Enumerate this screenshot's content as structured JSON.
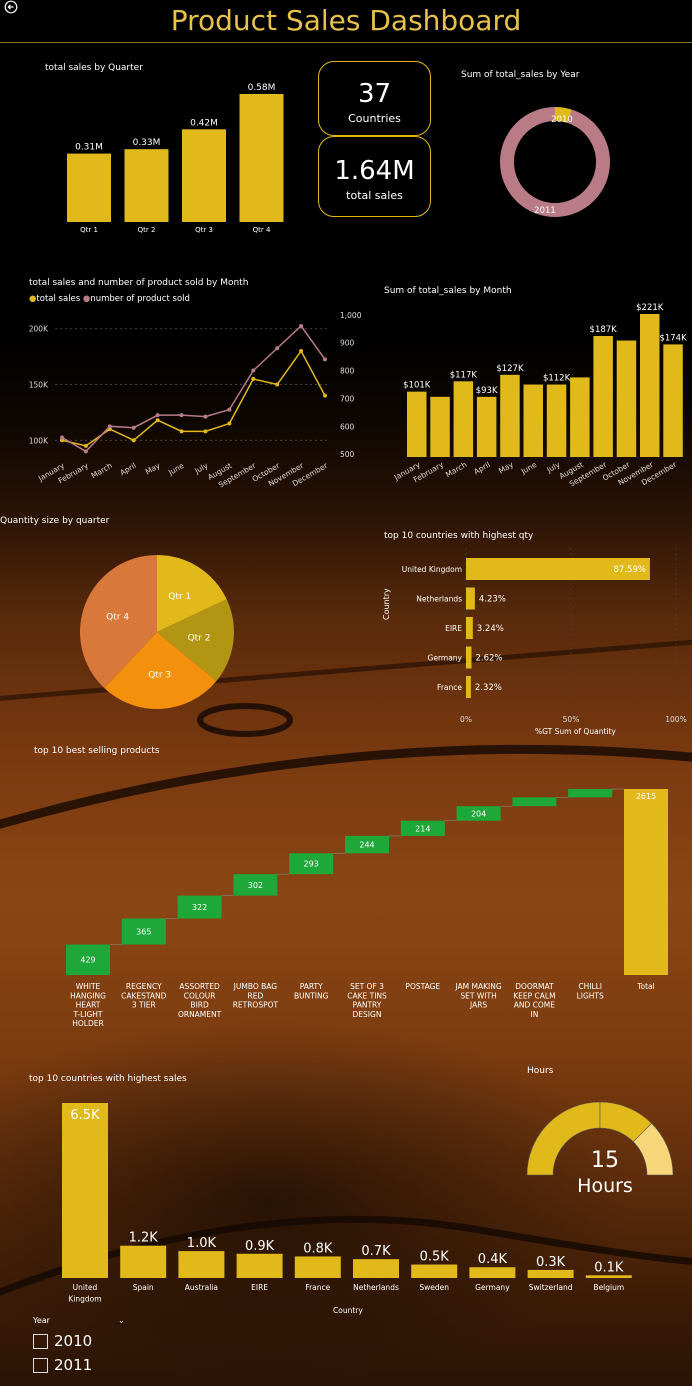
{
  "header": {
    "title": "Product Sales Dashboard"
  },
  "colors": {
    "gold": "#e1b91b",
    "mauve": "#b97b86",
    "green": "#1fa83a",
    "orange": "#f3900c",
    "rust": "#d8783a",
    "olive": "#b39514"
  },
  "cards": {
    "countries": {
      "value": "37",
      "label": "Countries"
    },
    "sales": {
      "value": "1.64M",
      "label": "total sales"
    }
  },
  "quarter_chart": {
    "title": "total sales by Quarter"
  },
  "year_chart": {
    "title": "Sum of total_sales by Year"
  },
  "month_line_chart": {
    "title": "total sales and number of product sold by Month",
    "legend": [
      "total sales",
      "number of product sold"
    ]
  },
  "month_bar_chart": {
    "title": "Sum of total_sales by Month"
  },
  "pie_chart": {
    "title": "Quantity size by quarter"
  },
  "qty_chart": {
    "title": "top 10 countries with highest qty",
    "ylabel": "Country",
    "xlabel": "%GT Sum of Quantity"
  },
  "products_chart": {
    "title": "top 10 best selling products"
  },
  "country_sales_chart": {
    "title": "top 10 countries with highest sales",
    "xlabel": "Country"
  },
  "gauge": {
    "title": "Hours",
    "value": "15",
    "unit": "Hours"
  },
  "slicer": {
    "title": "Year",
    "options": [
      "2010",
      "2011"
    ]
  },
  "chart_data": [
    {
      "id": "quarter",
      "type": "bar",
      "categories": [
        "Qtr 1",
        "Qtr 2",
        "Qtr 3",
        "Qtr 4"
      ],
      "values": [
        0.31,
        0.33,
        0.42,
        0.58
      ],
      "labels": [
        "0.31M",
        "0.33M",
        "0.42M",
        "0.58M"
      ],
      "title": "total sales by Quarter",
      "ylim": [
        0,
        0.58
      ]
    },
    {
      "id": "year",
      "type": "pie",
      "categories": [
        "2010",
        "2011"
      ],
      "values": [
        0.05,
        0.95
      ],
      "title": "Sum of total_sales by Year",
      "donut": true
    },
    {
      "id": "month_line",
      "type": "line",
      "categories": [
        "January",
        "February",
        "March",
        "April",
        "May",
        "June",
        "July",
        "August",
        "September",
        "October",
        "November",
        "December"
      ],
      "series": [
        {
          "name": "total sales",
          "axis": "left",
          "values": [
            100,
            95,
            110,
            100,
            118,
            108,
            108,
            115,
            155,
            150,
            180,
            140
          ]
        },
        {
          "name": "number of product sold",
          "axis": "right",
          "values": [
            560,
            510,
            600,
            595,
            640,
            640,
            635,
            660,
            800,
            880,
            960,
            840
          ]
        }
      ],
      "left_ticks": [
        "100K",
        "150K",
        "200K"
      ],
      "left_range": [
        85,
        215
      ],
      "right_ticks": [
        "500",
        "600",
        "700",
        "800",
        "900",
        "1,000"
      ],
      "right_range": [
        490,
        1010
      ]
    },
    {
      "id": "month_bar",
      "type": "bar",
      "categories": [
        "January",
        "February",
        "March",
        "April",
        "May",
        "June",
        "July",
        "August",
        "September",
        "October",
        "November",
        "December"
      ],
      "values": [
        101,
        93,
        117,
        93,
        127,
        112,
        112,
        123,
        187,
        180,
        221,
        174
      ],
      "labels": [
        "$101K",
        "",
        "$117K",
        "$93K",
        "$127K",
        "",
        "$112K",
        "",
        "$187K",
        "",
        "$221K",
        "$174K"
      ],
      "title": "Sum of total_sales by Month",
      "ylim": [
        0,
        221
      ]
    },
    {
      "id": "pie_quarter",
      "type": "pie",
      "categories": [
        "Qtr 1",
        "Qtr 2",
        "Qtr 3",
        "Qtr 4"
      ],
      "values": [
        18,
        18,
        26,
        38
      ],
      "title": "Quantity size by quarter"
    },
    {
      "id": "country_qty",
      "type": "bar",
      "orientation": "horizontal",
      "categories": [
        "United Kingdom",
        "Netherlands",
        "EIRE",
        "Germany",
        "France"
      ],
      "values": [
        87.59,
        4.23,
        3.24,
        2.62,
        2.32
      ],
      "labels": [
        "87.59%",
        "4.23%",
        "3.24%",
        "2.62%",
        "2.32%"
      ],
      "xticks": [
        "0%",
        "50%",
        "100%"
      ],
      "xlim": [
        0,
        100
      ],
      "title": "top 10 countries with highest qty",
      "xlabel": "%GT Sum of Quantity",
      "ylabel": "Country"
    },
    {
      "id": "products",
      "type": "waterfall",
      "categories": [
        "WHITE HANGING HEART T-LIGHT HOLDER",
        "REGENCY CAKESTAND 3 TIER",
        "ASSORTED COLOUR BIRD ORNAMENT",
        "JUMBO BAG RED RETROSPOT",
        "PARTY BUNTING",
        "SET OF 3 CAKE TINS PANTRY DESIGN",
        "POSTAGE",
        "JAM MAKING SET WITH JARS",
        "DOORMAT KEEP CALM AND COME IN",
        "CHILLI LIGHTS",
        "Total"
      ],
      "values": [
        429,
        365,
        322,
        302,
        293,
        244,
        214,
        204,
        125,
        117,
        2615
      ],
      "labels": [
        "429",
        "365",
        "322",
        "302",
        "293",
        "244",
        "214",
        "204",
        "",
        "",
        "2615"
      ],
      "title": "top 10 best selling products"
    },
    {
      "id": "country_sales",
      "type": "bar",
      "categories": [
        "United Kingdom",
        "Spain",
        "Australia",
        "EIRE",
        "France",
        "Netherlands",
        "Sweden",
        "Germany",
        "Switzerland",
        "Belgium"
      ],
      "values": [
        6.5,
        1.2,
        1.0,
        0.9,
        0.8,
        0.7,
        0.5,
        0.4,
        0.3,
        0.1
      ],
      "labels": [
        "6.5K",
        "1.2K",
        "1.0K",
        "0.9K",
        "0.8K",
        "0.7K",
        "0.5K",
        "0.4K",
        "0.3K",
        "0.1K"
      ],
      "title": "top 10 countries with highest sales",
      "xlabel": "Country",
      "ylim": [
        0,
        6.5
      ]
    },
    {
      "id": "hours_gauge",
      "type": "gauge",
      "value": 15,
      "segments": [
        0.5,
        0.25,
        0.25
      ],
      "title": "Hours"
    }
  ]
}
